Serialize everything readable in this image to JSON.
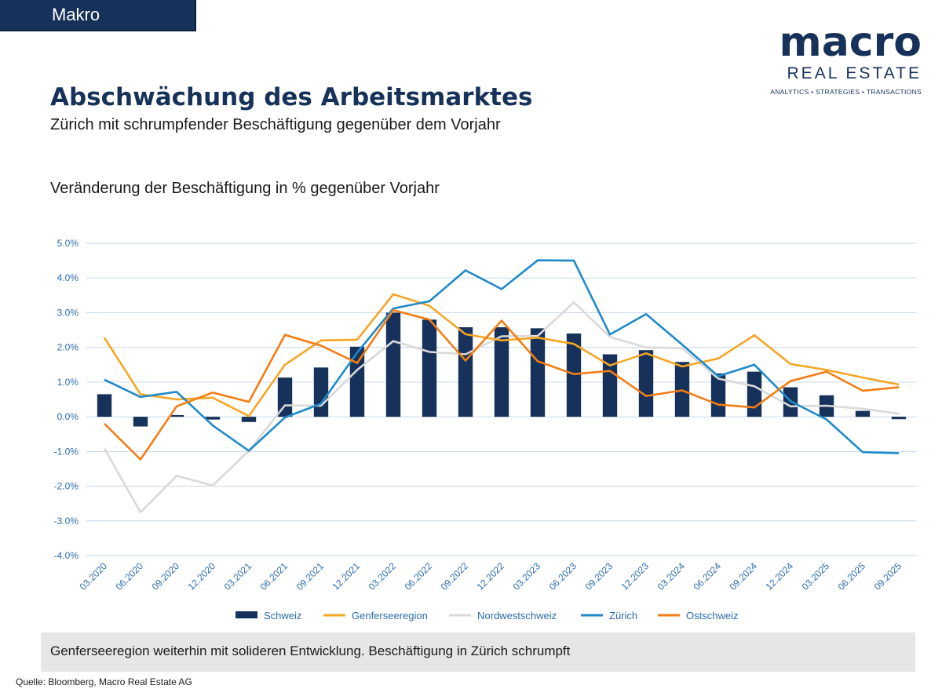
{
  "section_tab": "Makro",
  "logo": {
    "main": "macro",
    "sub": "REAL ESTATE",
    "tagline": "ANALYTICS • STRATEGIES • TRANSACTIONS"
  },
  "title": "Abschwächung des Arbeitsmarktes",
  "subtitle": "Zürich mit schrumpfender Beschäftigung gegenüber dem Vorjahr",
  "chart_heading": "Veränderung der Beschäftigung in % gegenüber Vorjahr",
  "note": "Genferseeregion weiterhin mit solideren Entwicklung. Beschäftigung in Zürich schrumpft",
  "source": "Quelle: Bloomberg, Macro Real Estate AG",
  "colors": {
    "Schweiz": "#17325a",
    "Genferseeregion": "#f5a623",
    "Nordwestschweiz": "#d9d9d9",
    "Zürich": "#1f8ac8",
    "Ostschweiz": "#f57c12",
    "grid": "#c6d9ee",
    "axis_text": "#2b6cb0"
  },
  "chart_data": {
    "type": "bar+line",
    "categories": [
      "03.2020",
      "06.2020",
      "09.2020",
      "12.2020",
      "03.2021",
      "06.2021",
      "09.2021",
      "12.2021",
      "03.2022",
      "06.2022",
      "09.2022",
      "12.2022",
      "03.2023",
      "06.2023",
      "09.2023",
      "12.2023",
      "03.2024",
      "06.2024",
      "09.2024",
      "12.2024",
      "03.2025",
      "06.2025",
      "09.2025"
    ],
    "ylim": [
      -4,
      5
    ],
    "yticks": [
      5,
      4,
      3,
      2,
      1,
      0,
      -1,
      -2,
      -3,
      -4
    ],
    "ytick_labels": [
      "5.0%",
      "4.0%",
      "3.0%",
      "2.0%",
      "1.0%",
      "0.0%",
      "-1.0%",
      "-2.0%",
      "-3.0%",
      "-4.0%"
    ],
    "grid": true,
    "legend_position": "bottom",
    "series": [
      {
        "name": "Schweiz",
        "kind": "bar",
        "values": [
          0.65,
          -0.28,
          0.05,
          -0.08,
          -0.15,
          1.13,
          1.42,
          2.02,
          3.0,
          2.8,
          2.58,
          2.58,
          2.55,
          2.4,
          1.8,
          1.92,
          1.58,
          1.25,
          1.3,
          0.85,
          0.62,
          0.17,
          -0.07
        ]
      },
      {
        "name": "Genferseeregion",
        "kind": "line",
        "values": [
          2.28,
          0.65,
          0.5,
          0.55,
          0.02,
          1.5,
          2.2,
          2.22,
          3.53,
          3.2,
          2.38,
          2.2,
          2.28,
          2.1,
          1.48,
          1.83,
          1.45,
          1.68,
          2.35,
          1.52,
          1.35,
          1.13,
          0.93
        ]
      },
      {
        "name": "Nordwestschweiz",
        "kind": "line",
        "values": [
          -0.92,
          -2.75,
          -1.7,
          -1.98,
          -0.98,
          0.33,
          0.32,
          1.35,
          2.18,
          1.87,
          1.8,
          2.32,
          2.33,
          3.3,
          2.3,
          2.0,
          1.98,
          1.1,
          0.88,
          0.3,
          0.32,
          0.23,
          0.09
        ]
      },
      {
        "name": "Zürich",
        "kind": "line",
        "values": [
          1.07,
          0.57,
          0.72,
          -0.25,
          -0.98,
          -0.02,
          0.38,
          1.85,
          3.12,
          3.33,
          4.22,
          3.68,
          4.51,
          4.5,
          2.37,
          2.96,
          2.08,
          1.17,
          1.5,
          0.45,
          -0.08,
          -1.02,
          -1.05
        ]
      },
      {
        "name": "Ostschweiz",
        "kind": "line",
        "values": [
          -0.2,
          -1.23,
          0.3,
          0.7,
          0.43,
          2.36,
          2.05,
          1.55,
          3.07,
          2.8,
          1.62,
          2.77,
          1.6,
          1.23,
          1.32,
          0.6,
          0.76,
          0.35,
          0.27,
          1.03,
          1.3,
          0.75,
          0.85
        ]
      }
    ]
  }
}
